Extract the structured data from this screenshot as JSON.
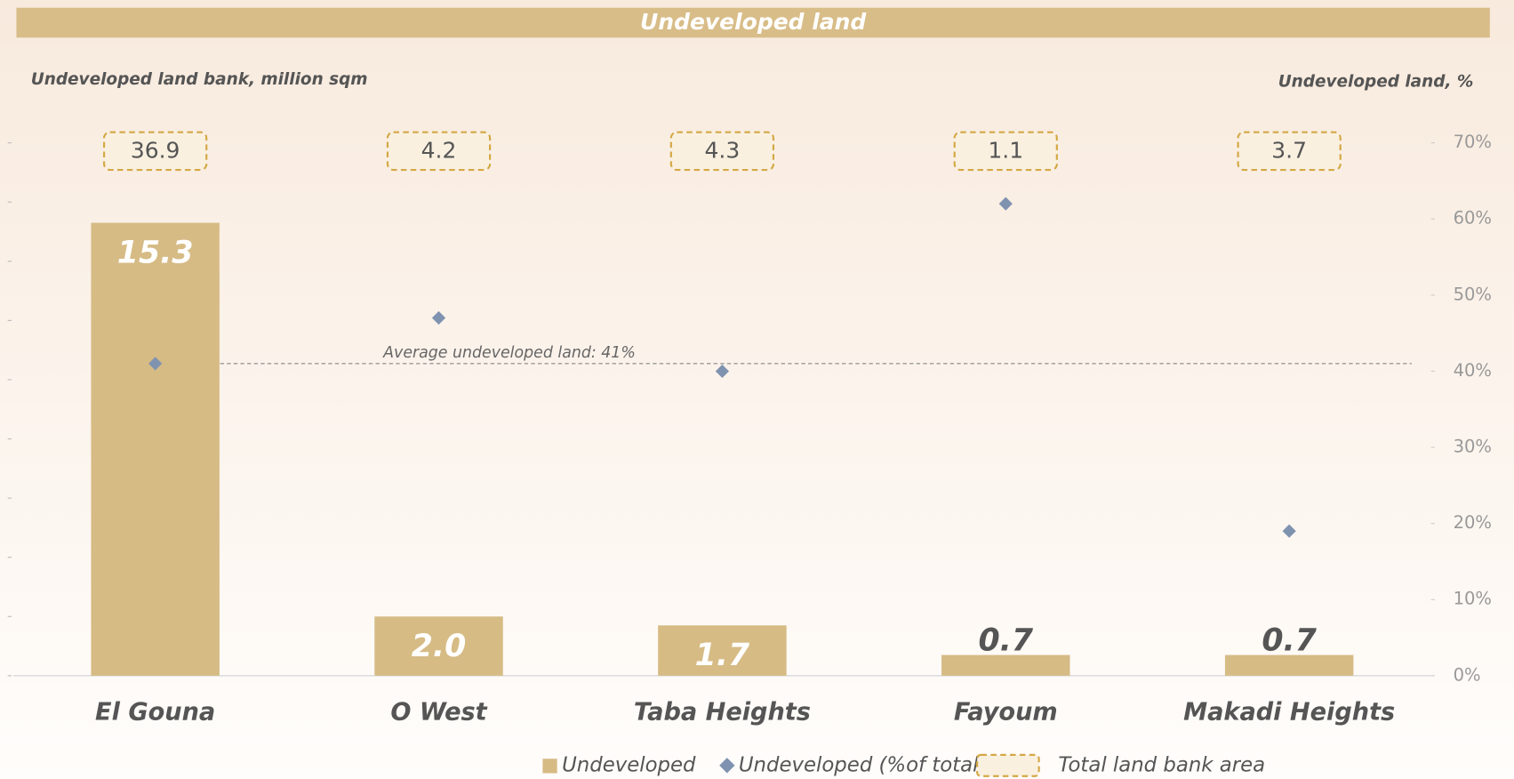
{
  "chart_data": {
    "type": "bar",
    "title": "Undeveloped land",
    "y_label": "Undeveloped land bank, million sqm",
    "y2_label": "Undeveloped land, %",
    "categories": [
      "El Gouna",
      "O West",
      "Taba Heights",
      "Fayoum",
      "Makadi Heights"
    ],
    "series": [
      {
        "name": "Undeveloped",
        "color": "#d6bb85",
        "kind": "bar",
        "values": [
          15.3,
          2.0,
          1.7,
          0.7,
          0.7
        ],
        "value_labels": [
          "15.3",
          "2.0",
          "1.7",
          "0.7",
          "0.7"
        ]
      },
      {
        "name": "Undeveloped (%of total)",
        "color": "#7f93b0",
        "kind": "diamond",
        "axis": "y2",
        "values": [
          41,
          47,
          40,
          62,
          19
        ]
      },
      {
        "name": "Total land bank area",
        "color": "#d4a845",
        "kind": "box",
        "values": [
          36.9,
          4.2,
          4.3,
          1.1,
          3.7
        ]
      }
    ],
    "average_line": {
      "value": 41,
      "label": "Average undeveloped land: 41%",
      "axis": "y2"
    },
    "ylim": [
      0,
      18
    ],
    "yticks": [
      0,
      2,
      4,
      6,
      8,
      10,
      12,
      14,
      16,
      18
    ],
    "y2lim": [
      0,
      70
    ],
    "y2ticks": [
      {
        "value": 0,
        "label": "0%"
      },
      {
        "value": 10,
        "label": "10%"
      },
      {
        "value": 20,
        "label": "20%"
      },
      {
        "value": 30,
        "label": "30%"
      },
      {
        "value": 40,
        "label": "40%"
      },
      {
        "value": 50,
        "label": "50%"
      },
      {
        "value": 60,
        "label": "60%"
      },
      {
        "value": 70,
        "label": "70%"
      }
    ]
  }
}
